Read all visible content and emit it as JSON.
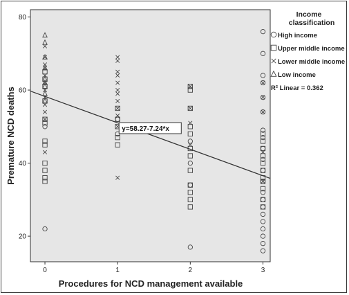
{
  "chart_data": {
    "type": "scatter",
    "xlabel": "Procedures for NCD management available",
    "ylabel": "Premature NCD deaths",
    "x_ticks": [
      0,
      1,
      2,
      3
    ],
    "y_ticks": [
      20,
      40,
      60,
      80
    ],
    "xlim": [
      -0.2,
      3.1
    ],
    "ylim": [
      13,
      82
    ],
    "grid": false,
    "background": "#e6e6e6",
    "legend": {
      "title": "Income classification",
      "position": "right",
      "entries": [
        {
          "label": "High income",
          "marker": "circle"
        },
        {
          "label": "Upper middle income",
          "marker": "square"
        },
        {
          "label": "Lower middle income",
          "marker": "x"
        },
        {
          "label": "Low income",
          "marker": "triangle"
        }
      ],
      "fit_label": "R² Linear = 0.362"
    },
    "fit": {
      "label": "y=58.27-7.24*x",
      "intercept": 58.27,
      "slope": -7.24,
      "x_range": [
        -0.2,
        3.1
      ]
    },
    "series": [
      {
        "name": "High income",
        "marker": "circle",
        "points": [
          [
            0,
            22
          ],
          [
            0,
            50
          ],
          [
            1,
            48
          ],
          [
            1,
            52
          ],
          [
            2,
            17
          ],
          [
            2,
            34
          ],
          [
            2,
            40
          ],
          [
            2,
            46
          ],
          [
            3,
            16
          ],
          [
            3,
            18
          ],
          [
            3,
            20
          ],
          [
            3,
            22
          ],
          [
            3,
            24
          ],
          [
            3,
            26
          ],
          [
            3,
            28
          ],
          [
            3,
            30
          ],
          [
            3,
            32
          ],
          [
            3,
            35
          ],
          [
            3,
            38
          ],
          [
            3,
            41
          ],
          [
            3,
            44
          ],
          [
            3,
            47
          ],
          [
            3,
            49
          ],
          [
            3,
            54
          ],
          [
            3,
            58
          ],
          [
            3,
            62
          ],
          [
            3,
            64
          ],
          [
            3,
            70
          ],
          [
            3,
            76
          ]
        ]
      },
      {
        "name": "Upper middle income",
        "marker": "square",
        "points": [
          [
            0,
            35
          ],
          [
            0,
            36
          ],
          [
            0,
            38
          ],
          [
            0,
            40
          ],
          [
            0,
            45
          ],
          [
            0,
            46
          ],
          [
            0,
            51
          ],
          [
            0,
            52
          ],
          [
            0,
            57
          ],
          [
            0,
            61
          ],
          [
            0,
            63
          ],
          [
            0,
            65
          ],
          [
            1,
            45
          ],
          [
            1,
            47
          ],
          [
            1,
            50
          ],
          [
            1,
            52
          ],
          [
            1,
            55
          ],
          [
            2,
            28
          ],
          [
            2,
            30
          ],
          [
            2,
            32
          ],
          [
            2,
            34
          ],
          [
            2,
            38
          ],
          [
            2,
            42
          ],
          [
            2,
            44
          ],
          [
            2,
            48
          ],
          [
            2,
            50
          ],
          [
            2,
            55
          ],
          [
            2,
            60
          ],
          [
            2,
            61
          ],
          [
            3,
            28
          ],
          [
            3,
            30
          ],
          [
            3,
            33
          ],
          [
            3,
            35
          ],
          [
            3,
            36
          ],
          [
            3,
            38
          ],
          [
            3,
            40
          ],
          [
            3,
            42
          ],
          [
            3,
            44
          ],
          [
            3,
            46
          ],
          [
            3,
            48
          ]
        ]
      },
      {
        "name": "Lower middle income",
        "marker": "x",
        "points": [
          [
            0,
            43
          ],
          [
            0,
            52
          ],
          [
            0,
            54
          ],
          [
            0,
            56
          ],
          [
            0,
            58
          ],
          [
            0,
            60
          ],
          [
            0,
            62
          ],
          [
            0,
            64
          ],
          [
            0,
            66
          ],
          [
            0,
            67
          ],
          [
            0,
            69
          ],
          [
            0,
            72
          ],
          [
            1,
            36
          ],
          [
            1,
            50
          ],
          [
            1,
            53
          ],
          [
            1,
            55
          ],
          [
            1,
            57
          ],
          [
            1,
            59
          ],
          [
            1,
            60
          ],
          [
            1,
            62
          ],
          [
            1,
            64
          ],
          [
            1,
            65
          ],
          [
            1,
            68
          ],
          [
            1,
            69
          ],
          [
            2,
            45
          ],
          [
            2,
            51
          ],
          [
            2,
            55
          ],
          [
            2,
            61
          ],
          [
            3,
            35
          ],
          [
            3,
            43
          ],
          [
            3,
            54
          ],
          [
            3,
            58
          ],
          [
            3,
            62
          ]
        ]
      },
      {
        "name": "Low income",
        "marker": "triangle",
        "points": [
          [
            0,
            57
          ],
          [
            0,
            59
          ],
          [
            0,
            61
          ],
          [
            0,
            62
          ],
          [
            0,
            63
          ],
          [
            0,
            66
          ],
          [
            0,
            69
          ],
          [
            0,
            73
          ],
          [
            0,
            75
          ]
        ]
      }
    ]
  }
}
